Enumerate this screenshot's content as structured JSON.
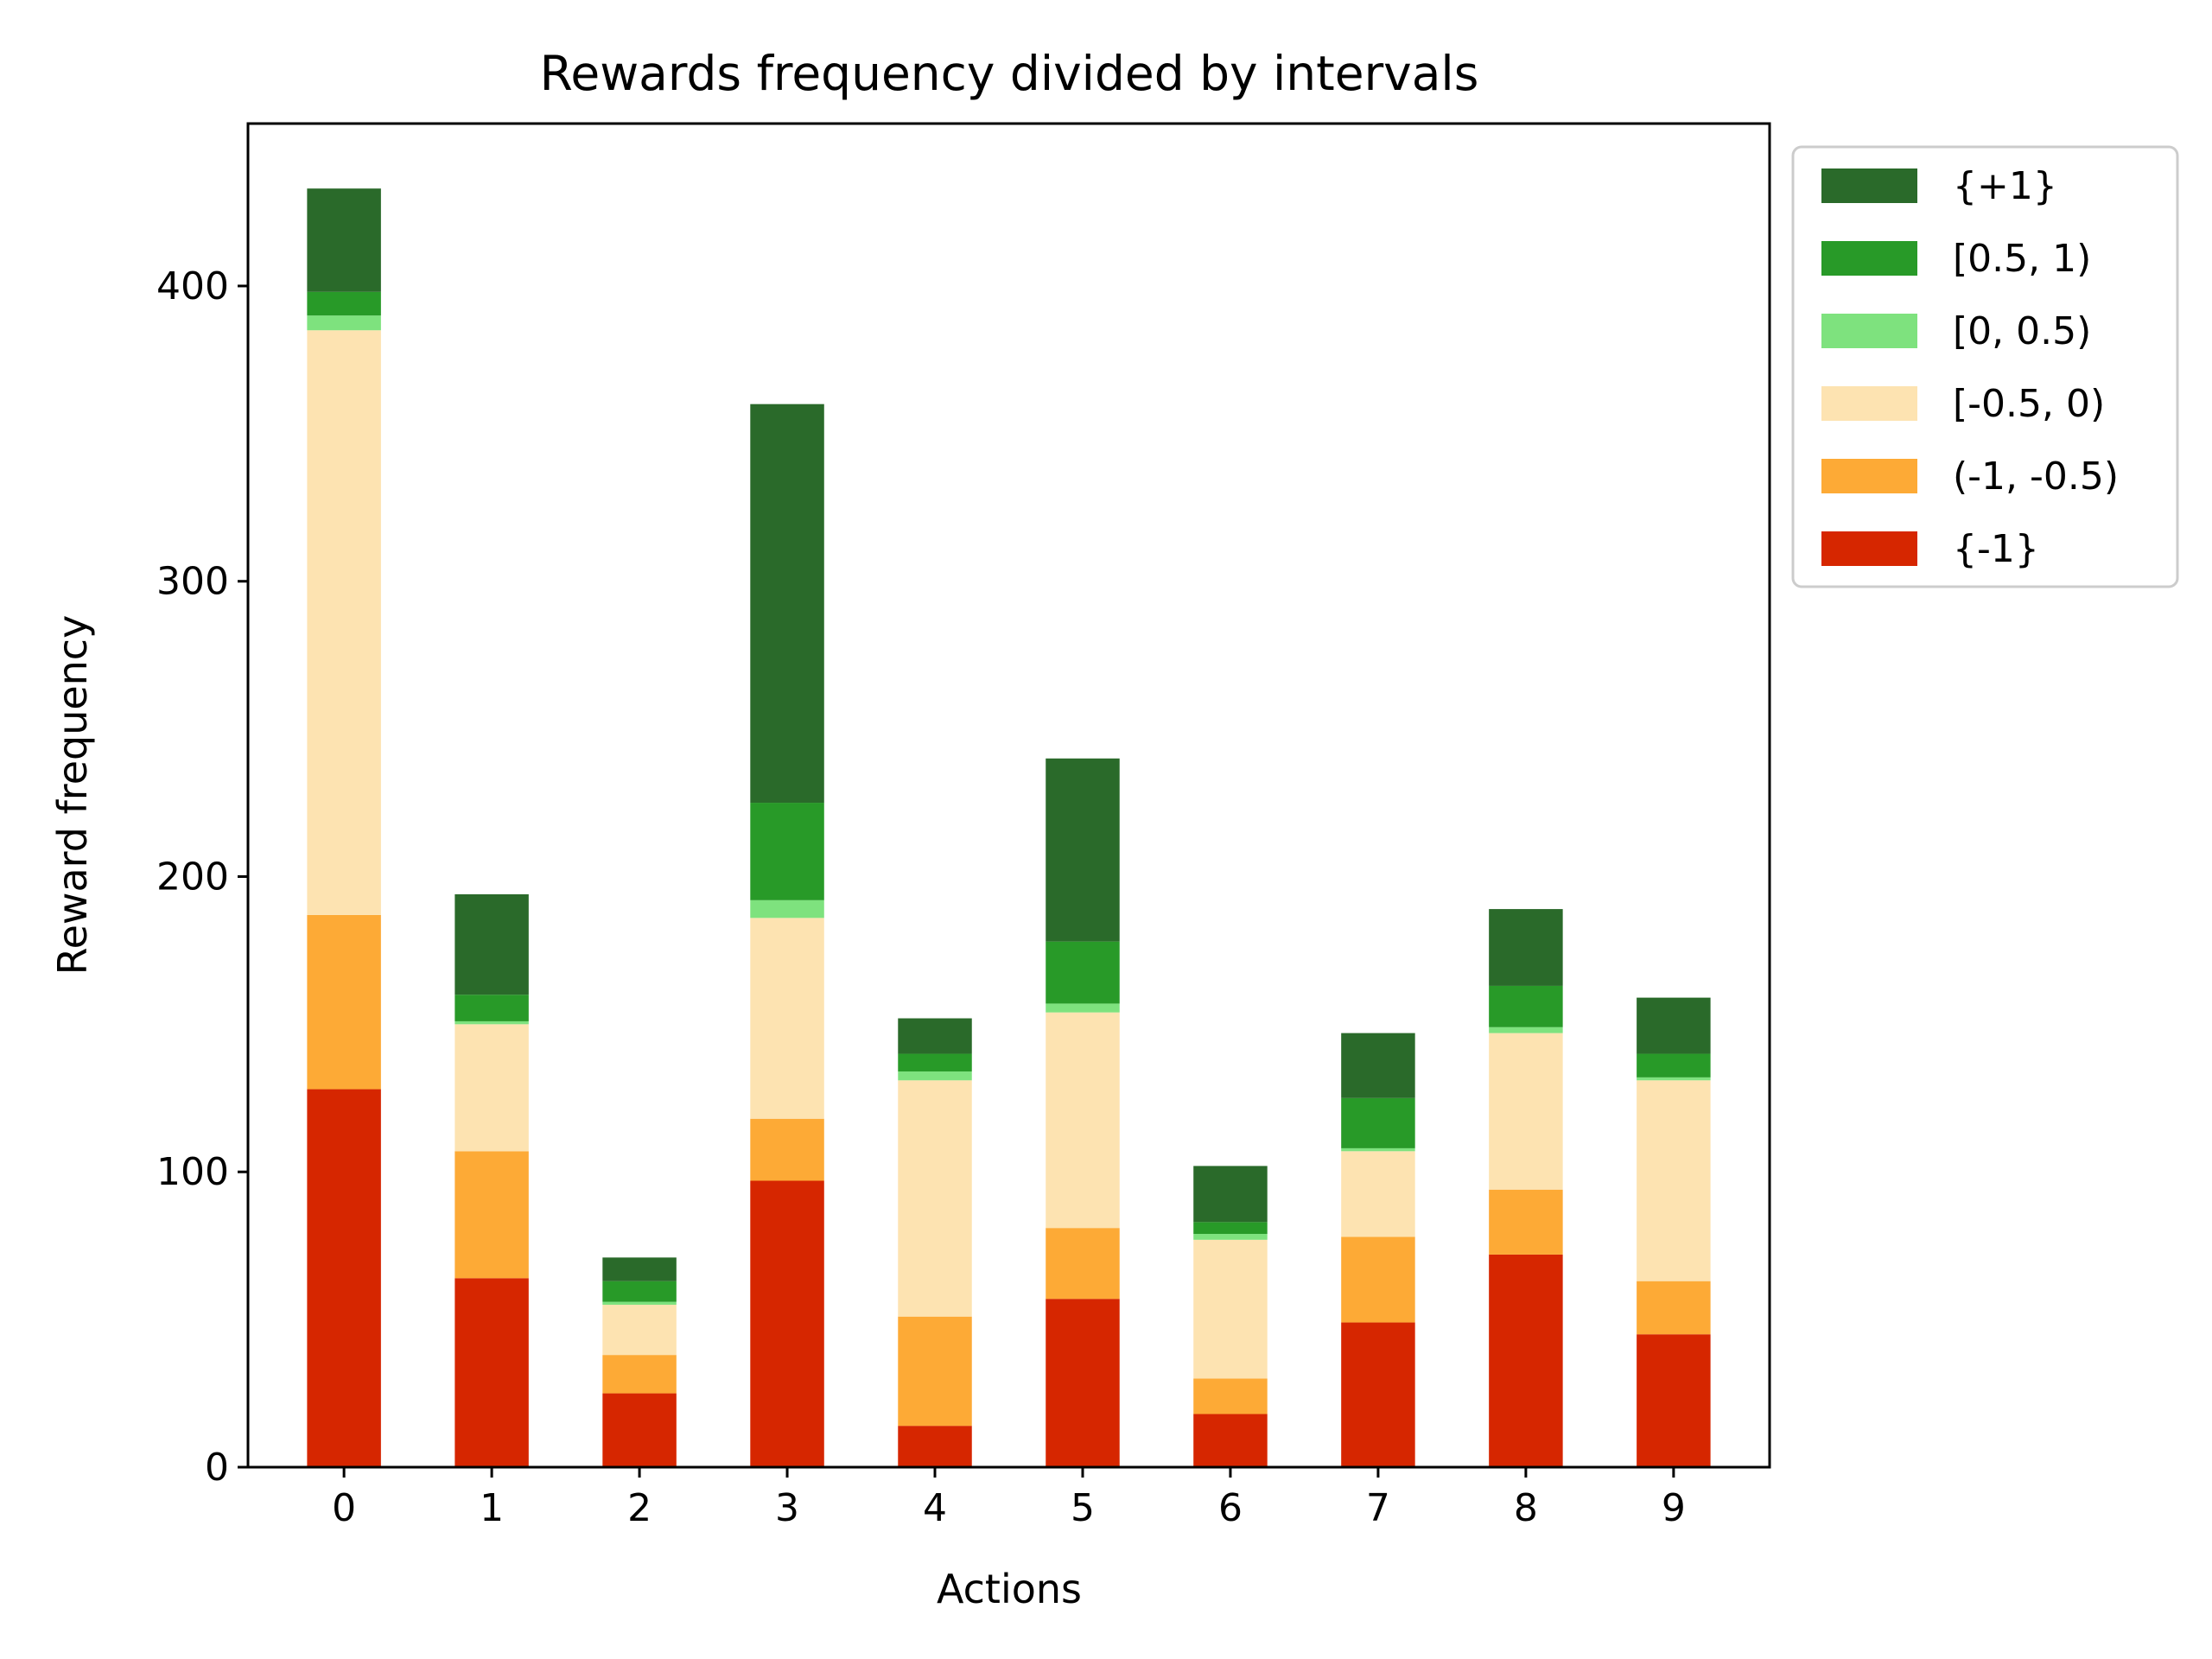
{
  "chart_data": {
    "type": "bar",
    "stacked": true,
    "title": "Rewards frequency divided by intervals",
    "xlabel": "Actions",
    "ylabel": "Reward frequency",
    "categories": [
      "0",
      "1",
      "2",
      "3",
      "4",
      "5",
      "6",
      "7",
      "8",
      "9"
    ],
    "ylim": [
      0,
      455
    ],
    "yticks": [
      0,
      100,
      200,
      300,
      400
    ],
    "grid": false,
    "legend_position": "outside-upper-right",
    "series": [
      {
        "name": "{-1}",
        "color": "#d62600",
        "values": [
          128,
          64,
          25,
          97,
          14,
          57,
          18,
          49,
          72,
          45
        ]
      },
      {
        "name": "(-1, -0.5)",
        "color": "#fdaa36",
        "values": [
          59,
          43,
          13,
          21,
          37,
          24,
          12,
          29,
          22,
          18
        ]
      },
      {
        "name": "[-0.5, 0)",
        "color": "#fde3b1",
        "values": [
          198,
          43,
          17,
          68,
          80,
          73,
          47,
          29,
          53,
          68
        ]
      },
      {
        "name": "[0, 0.5)",
        "color": "#7ee27e",
        "values": [
          5,
          1,
          1,
          6,
          3,
          3,
          2,
          1,
          2,
          1
        ]
      },
      {
        "name": "[0.5, 1)",
        "color": "#289a28",
        "values": [
          8,
          9,
          7,
          33,
          6,
          21,
          4,
          17,
          14,
          8
        ]
      },
      {
        "name": "{+1}",
        "color": "#2a6a2a",
        "values": [
          35,
          34,
          8,
          135,
          12,
          62,
          19,
          22,
          26,
          19
        ]
      }
    ],
    "legend_order": [
      "{+1}",
      "[0.5, 1)",
      "[0, 0.5)",
      "[-0.5, 0)",
      "(-1, -0.5)",
      "{-1}"
    ]
  }
}
